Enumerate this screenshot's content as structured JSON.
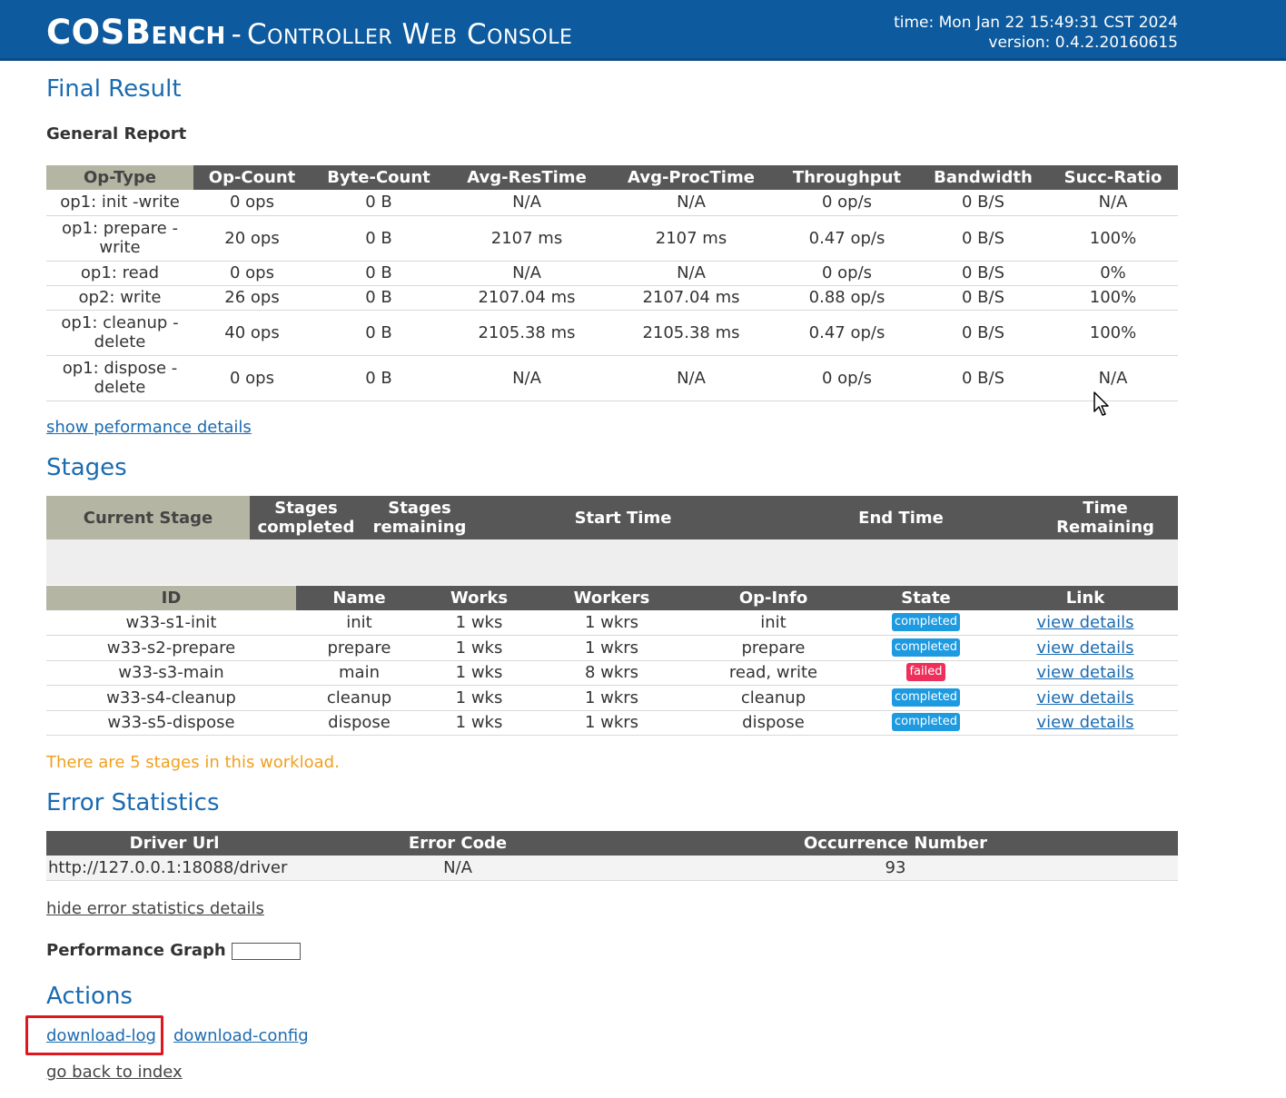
{
  "header": {
    "app_name": "COSBench",
    "separator": "-",
    "subtitle": "Controller Web Console",
    "time": "time: Mon Jan 22 15:49:31 CST 2024",
    "version": "version: 0.4.2.20160615"
  },
  "final_result": {
    "title": "Final Result",
    "general_report_label": "General Report",
    "columns": [
      "Op-Type",
      "Op-Count",
      "Byte-Count",
      "Avg-ResTime",
      "Avg-ProcTime",
      "Throughput",
      "Bandwidth",
      "Succ-Ratio"
    ],
    "rows": [
      [
        "op1: init -write",
        "0 ops",
        "0 B",
        "N/A",
        "N/A",
        "0 op/s",
        "0 B/S",
        "N/A"
      ],
      [
        "op1: prepare - write",
        "20 ops",
        "0 B",
        "2107 ms",
        "2107 ms",
        "0.47 op/s",
        "0 B/S",
        "100%"
      ],
      [
        "op1: read",
        "0 ops",
        "0 B",
        "N/A",
        "N/A",
        "0 op/s",
        "0 B/S",
        "0%"
      ],
      [
        "op2: write",
        "26 ops",
        "0 B",
        "2107.04 ms",
        "2107.04 ms",
        "0.88 op/s",
        "0 B/S",
        "100%"
      ],
      [
        "op1: cleanup - delete",
        "40 ops",
        "0 B",
        "2105.38 ms",
        "2105.38 ms",
        "0.47 op/s",
        "0 B/S",
        "100%"
      ],
      [
        "op1: dispose - delete",
        "0 ops",
        "0 B",
        "N/A",
        "N/A",
        "0 op/s",
        "0 B/S",
        "N/A"
      ]
    ],
    "perf_link": "show peformance details"
  },
  "stages": {
    "title": "Stages",
    "summary_columns": [
      "Current Stage",
      "Stages completed",
      "Stages remaining",
      "Start Time",
      "End Time",
      "Time Remaining"
    ],
    "columns": [
      "ID",
      "Name",
      "Works",
      "Workers",
      "Op-Info",
      "State",
      "Link"
    ],
    "rows": [
      {
        "id": "w33-s1-init",
        "name": "init",
        "works": "1 wks",
        "workers": "1 wkrs",
        "opinfo": "init",
        "state": "completed",
        "link": "view details"
      },
      {
        "id": "w33-s2-prepare",
        "name": "prepare",
        "works": "1 wks",
        "workers": "1 wkrs",
        "opinfo": "prepare",
        "state": "completed",
        "link": "view details"
      },
      {
        "id": "w33-s3-main",
        "name": "main",
        "works": "1 wks",
        "workers": "8 wkrs",
        "opinfo": "read, write",
        "state": "failed",
        "link": "view details"
      },
      {
        "id": "w33-s4-cleanup",
        "name": "cleanup",
        "works": "1 wks",
        "workers": "1 wkrs",
        "opinfo": "cleanup",
        "state": "completed",
        "link": "view details"
      },
      {
        "id": "w33-s5-dispose",
        "name": "dispose",
        "works": "1 wks",
        "workers": "1 wkrs",
        "opinfo": "dispose",
        "state": "completed",
        "link": "view details"
      }
    ],
    "note": "There are 5 stages in this workload."
  },
  "errors": {
    "title": "Error Statistics",
    "columns": [
      "Driver Url",
      "Error Code",
      "Occurrence Number"
    ],
    "rows": [
      [
        "http://127.0.0.1:18088/driver",
        "N/A",
        "93"
      ]
    ],
    "hide_link": "hide error statistics details"
  },
  "performance_graph_label": "Performance Graph",
  "actions": {
    "title": "Actions",
    "download_log": "download-log",
    "download_config": "download-config",
    "back": "go back to index"
  },
  "colors": {
    "header_bg": "#0d5a9e",
    "heading": "#1b6bb0",
    "completed": "#1e9ae0",
    "failed": "#ee2f5b",
    "note": "#f0a020",
    "highlight": "#e0161f"
  }
}
